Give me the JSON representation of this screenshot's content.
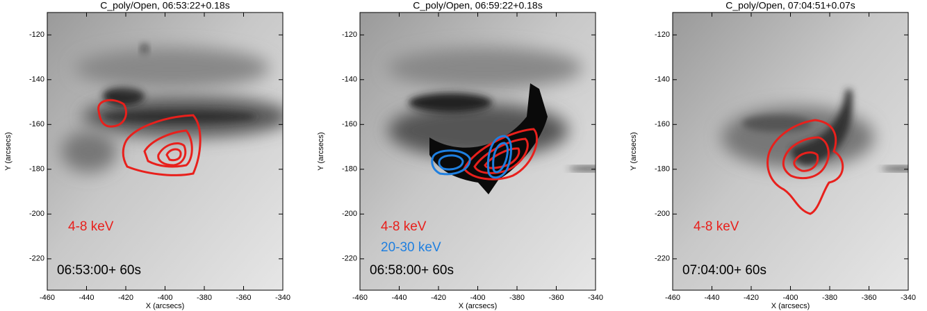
{
  "chart_data": [
    {
      "type": "image",
      "title": "C_poly/Open, 06:53:22+0.18s",
      "xlabel": "X (arcsecs)",
      "ylabel": "Y (arcsecs)",
      "xlim": [
        -460,
        -340
      ],
      "ylim": [
        -234,
        -110
      ],
      "xticks": [
        -460,
        -440,
        -420,
        -400,
        -380,
        -360,
        -340
      ],
      "yticks": [
        -120,
        -140,
        -160,
        -180,
        -200,
        -220
      ],
      "annotations": [
        {
          "text": "4-8 keV",
          "color": "#e8201c"
        }
      ],
      "time_label": "06:53:00+ 60s"
    },
    {
      "type": "image",
      "title": "C_poly/Open, 06:59:22+0.18s",
      "xlabel": "X (arcsecs)",
      "ylabel": "Y (arcsecs)",
      "xlim": [
        -460,
        -340
      ],
      "ylim": [
        -234,
        -110
      ],
      "xticks": [
        -460,
        -440,
        -420,
        -400,
        -380,
        -360,
        -340
      ],
      "yticks": [
        -120,
        -140,
        -160,
        -180,
        -200,
        -220
      ],
      "annotations": [
        {
          "text": "4-8 keV",
          "color": "#e8201c"
        },
        {
          "text": "20-30 keV",
          "color": "#1e7fe0"
        }
      ],
      "time_label": "06:58:00+ 60s"
    },
    {
      "type": "image",
      "title": "C_poly/Open, 07:04:51+0.07s",
      "xlabel": "X (arcsecs)",
      "ylabel": "Y (arcsecs)",
      "xlim": [
        -460,
        -340
      ],
      "ylim": [
        -234,
        -110
      ],
      "xticks": [
        -460,
        -440,
        -420,
        -400,
        -380,
        -360,
        -340
      ],
      "yticks": [
        -120,
        -140,
        -160,
        -180,
        -200,
        -220
      ],
      "annotations": [
        {
          "text": "4-8 keV",
          "color": "#e8201c"
        }
      ],
      "time_label": "07:04:00+ 60s"
    }
  ]
}
